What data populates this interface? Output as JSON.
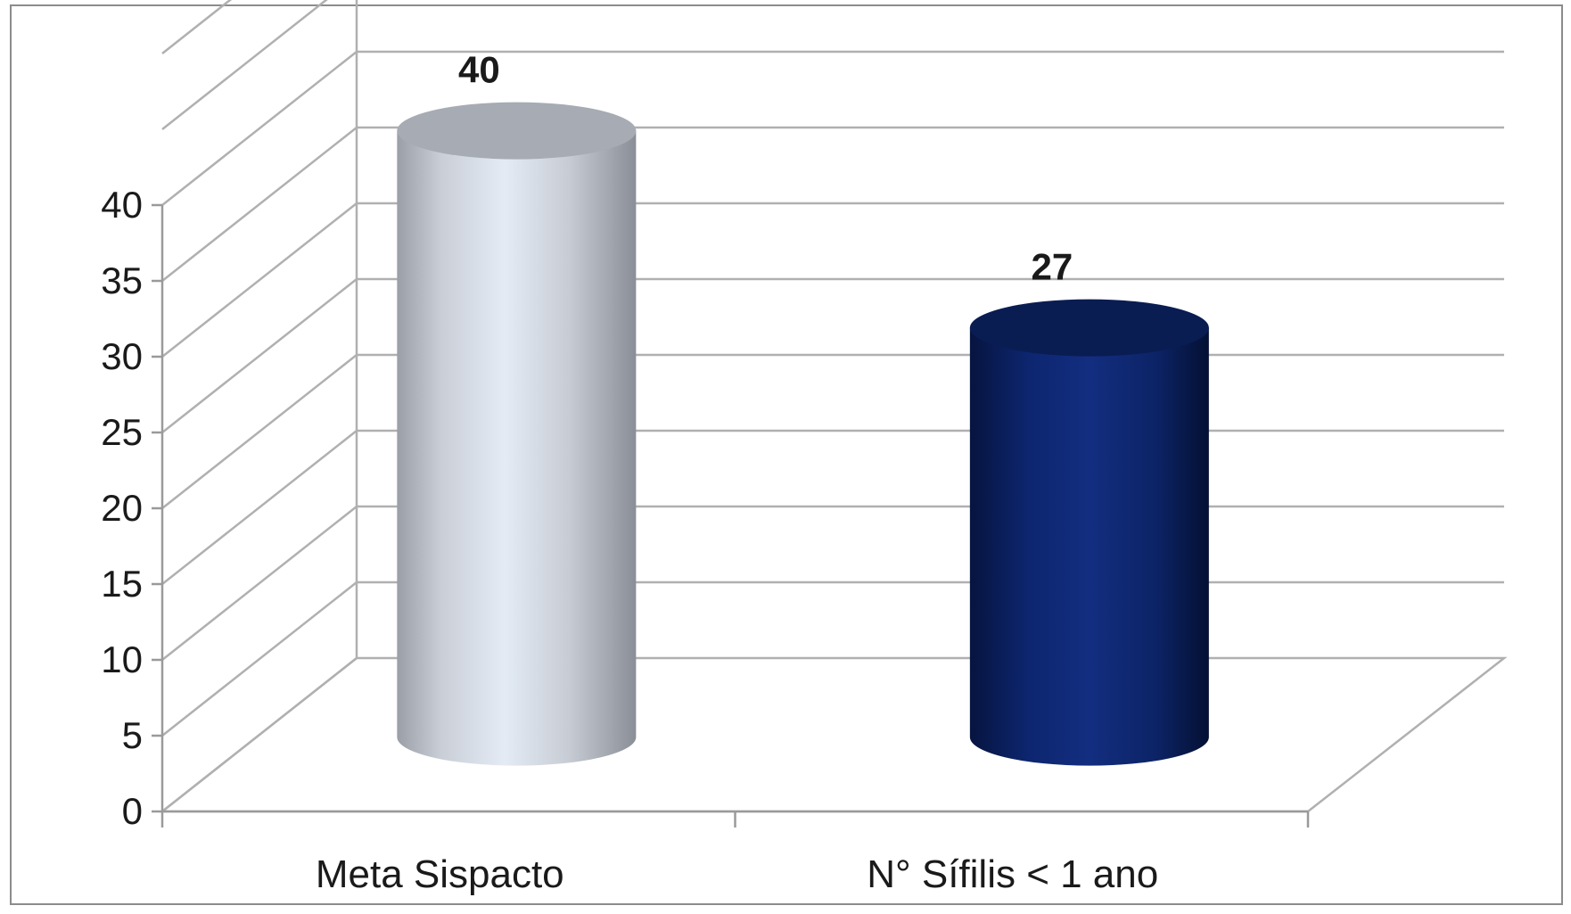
{
  "chart_data": {
    "type": "bar",
    "style": "3d-cylinder",
    "categories": [
      "Meta Sispacto",
      "N° Sífilis < 1 ano"
    ],
    "values": [
      40,
      27
    ],
    "data_labels": [
      "40",
      "27"
    ],
    "bar_colors": [
      "#d3d9e2",
      "#0b2463"
    ],
    "ylim": [
      0,
      40
    ],
    "yticks": [
      0,
      5,
      10,
      15,
      20,
      25,
      30,
      35,
      40
    ],
    "ytick_labels": [
      "0",
      "5",
      "10",
      "15",
      "20",
      "25",
      "30",
      "35",
      "40"
    ],
    "grid": true,
    "legend": "none"
  }
}
